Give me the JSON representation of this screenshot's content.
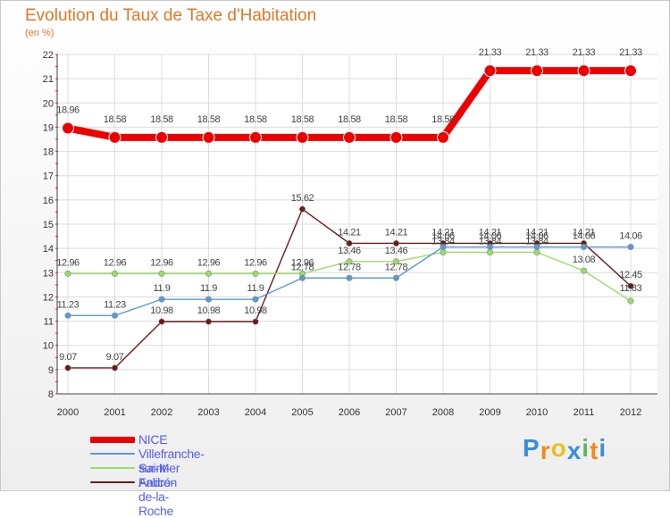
{
  "title": "Evolution du Taux de Taxe d'Habitation",
  "subtitle": "(en %)",
  "brand": {
    "text": "Proxiti",
    "letters": [
      "P",
      "r",
      "o",
      "x",
      "i",
      "t",
      "i"
    ]
  },
  "chart_data": {
    "type": "line",
    "title": "Evolution du Taux de Taxe d'Habitation",
    "ylabel": "(en %)",
    "xlabel": "",
    "x": [
      "2000",
      "2001",
      "2002",
      "2003",
      "2004",
      "2005",
      "2006",
      "2007",
      "2008",
      "2009",
      "2010",
      "2011",
      "2012"
    ],
    "ylim": [
      8,
      22
    ],
    "yticks": [
      8,
      9,
      10,
      11,
      12,
      13,
      14,
      15,
      16,
      17,
      18,
      19,
      20,
      21,
      22
    ],
    "grid": true,
    "legend_position": "bottom-left",
    "series": [
      {
        "name": "NICE",
        "color": "#ee0000",
        "values": [
          18.96,
          18.58,
          18.58,
          18.58,
          18.58,
          18.58,
          18.58,
          18.58,
          18.58,
          21.33,
          21.33,
          21.33,
          21.33
        ],
        "labels": [
          "18.96",
          "18.58",
          "18.58",
          "18.58",
          "18.58",
          "18.58",
          "18.58",
          "18.58",
          "18.58",
          "21.33",
          "21.33",
          "21.33",
          "21.33"
        ]
      },
      {
        "name": "Villefranche-sur-Mer",
        "color": "#5b9bd5",
        "values": [
          11.23,
          11.23,
          11.9,
          11.9,
          11.9,
          12.78,
          12.78,
          12.78,
          14.06,
          14.06,
          14.06,
          14.06,
          14.06
        ],
        "labels": [
          "11.23",
          "11.23",
          "11.9",
          "11.9",
          "11.9",
          "12.78",
          "12.78",
          "12.78",
          "14.06",
          "14.06",
          "14.06",
          "14.06",
          "14.06"
        ]
      },
      {
        "name": "Saint-André-de-la-Roche",
        "color": "#99dd66",
        "values": [
          12.96,
          12.96,
          12.96,
          12.96,
          12.96,
          12.96,
          13.46,
          13.46,
          13.84,
          13.84,
          13.84,
          13.08,
          11.83
        ],
        "labels": [
          "12.96",
          "12.96",
          "12.96",
          "12.96",
          "12.96",
          "12.96",
          "13.46",
          "13.46",
          "13.84",
          "13.84",
          "13.84",
          "13.08",
          "11.83"
        ]
      },
      {
        "name": "Falicon",
        "color": "#6b1a1a",
        "values": [
          9.07,
          9.07,
          10.98,
          10.98,
          10.98,
          15.62,
          14.21,
          14.21,
          14.21,
          14.21,
          14.21,
          14.21,
          12.45
        ],
        "labels": [
          "9.07",
          "9.07",
          "10.98",
          "10.98",
          "10.98",
          "15.62",
          "14.21",
          "14.21",
          "14.21",
          "14.21",
          "14.21",
          "14.21",
          "12.45"
        ]
      }
    ]
  }
}
